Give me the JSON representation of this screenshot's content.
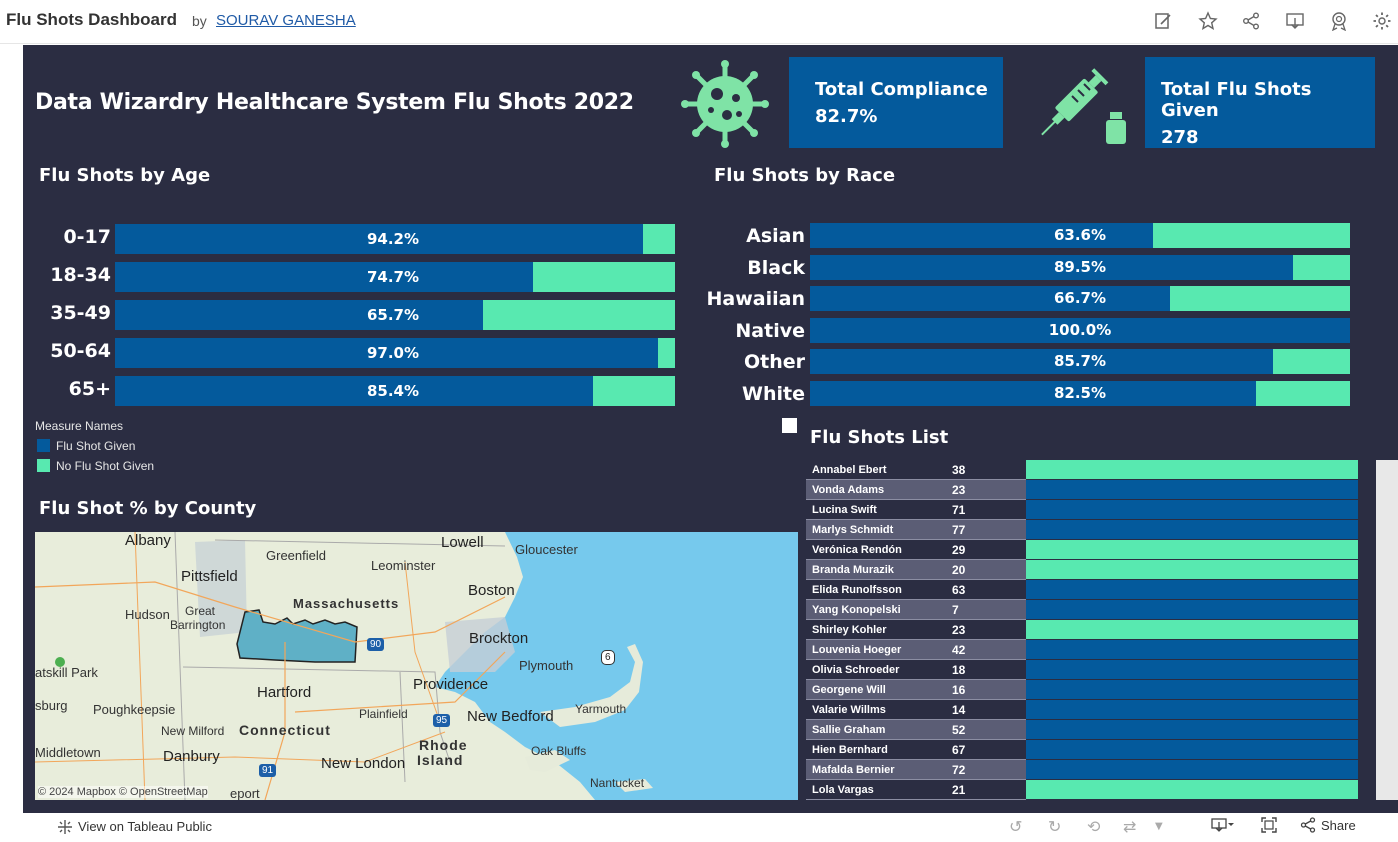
{
  "header": {
    "title": "Flu Shots Dashboard",
    "by": "by",
    "author": "SOURAV GANESHA",
    "icons": [
      "edit-icon",
      "star-icon",
      "share-icon",
      "download-icon",
      "badge-icon",
      "gear-icon"
    ]
  },
  "dashboard": {
    "title": "Data  Wizardry Healthcare System Flu Shots 2022",
    "kpis": [
      {
        "label": "Total Compliance",
        "value": "82.7%"
      },
      {
        "label": "Total Flu Shots Given",
        "value": "278"
      }
    ],
    "colors": {
      "given": "#045a9c",
      "not_given": "#58e9b0",
      "background": "#2b2d42"
    }
  },
  "age_chart": {
    "title": "Flu Shots by Age",
    "rows": [
      {
        "label": "0-17",
        "pct": 94.2,
        "text": "94.2%"
      },
      {
        "label": "18-34",
        "pct": 74.7,
        "text": "74.7%"
      },
      {
        "label": "35-49",
        "pct": 65.7,
        "text": "65.7%"
      },
      {
        "label": "50-64",
        "pct": 97.0,
        "text": "97.0%"
      },
      {
        "label": "65+",
        "pct": 85.4,
        "text": "85.4%"
      }
    ]
  },
  "race_chart": {
    "title": "Flu Shots by Race",
    "rows": [
      {
        "label": "Asian",
        "pct": 63.6,
        "text": "63.6%"
      },
      {
        "label": "Black",
        "pct": 89.5,
        "text": "89.5%"
      },
      {
        "label": "Hawaiian",
        "pct": 66.7,
        "text": "66.7%"
      },
      {
        "label": "Native",
        "pct": 100.0,
        "text": "100.0%"
      },
      {
        "label": "Other",
        "pct": 85.7,
        "text": "85.7%"
      },
      {
        "label": "White",
        "pct": 82.5,
        "text": "82.5%"
      }
    ]
  },
  "legend": {
    "title": "Measure Names",
    "items": [
      "Flu Shot Given",
      "No Flu Shot Given"
    ]
  },
  "map": {
    "title": "Flu Shot % by County",
    "credit": "© 2024 Mapbox  © OpenStreetMap",
    "places": [
      "Albany",
      "Lowell",
      "Gloucester",
      "Greenfield",
      "Leominster",
      "Pittsfield",
      "Boston",
      "Massachusetts",
      "Hudson",
      "Great",
      "Barrington",
      "Brockton",
      "Plymouth",
      "atskill Park",
      "Hartford",
      "Providence",
      "Poughkeepsie",
      "sburg",
      "Plainfield",
      "Yarmouth",
      "New Bedford",
      "New Milford",
      "Connecticut",
      "Rhode",
      "Island",
      "Danbury",
      "Oak Bluffs",
      "Middletown",
      "New London",
      "Nantucket",
      "eport"
    ],
    "shields": [
      "90",
      "6",
      "95",
      "91"
    ]
  },
  "list": {
    "title": "Flu Shots List",
    "rows": [
      {
        "name": "Annabel Ebert",
        "age": "38",
        "given": false
      },
      {
        "name": "Vonda Adams",
        "age": "23",
        "given": true
      },
      {
        "name": "Lucina Swift",
        "age": "71",
        "given": true
      },
      {
        "name": "Marlys Schmidt",
        "age": "77",
        "given": true
      },
      {
        "name": "Verónica Rendón",
        "age": "29",
        "given": false
      },
      {
        "name": "Branda Murazik",
        "age": "20",
        "given": false
      },
      {
        "name": "Elida Runolfsson",
        "age": "63",
        "given": true
      },
      {
        "name": "Yang Konopelski",
        "age": "7",
        "given": true
      },
      {
        "name": "Shirley Kohler",
        "age": "23",
        "given": false
      },
      {
        "name": "Louvenia Hoeger",
        "age": "42",
        "given": true
      },
      {
        "name": "Olivia Schroeder",
        "age": "18",
        "given": true
      },
      {
        "name": "Georgene Will",
        "age": "16",
        "given": true
      },
      {
        "name": "Valarie Willms",
        "age": "14",
        "given": true
      },
      {
        "name": "Sallie Graham",
        "age": "52",
        "given": true
      },
      {
        "name": "Hien Bernhard",
        "age": "67",
        "given": true
      },
      {
        "name": "Mafalda Bernier",
        "age": "72",
        "given": true
      },
      {
        "name": "Lola Vargas",
        "age": "21",
        "given": false
      }
    ]
  },
  "footer": {
    "view_public": "View on Tableau Public",
    "share": "Share"
  }
}
